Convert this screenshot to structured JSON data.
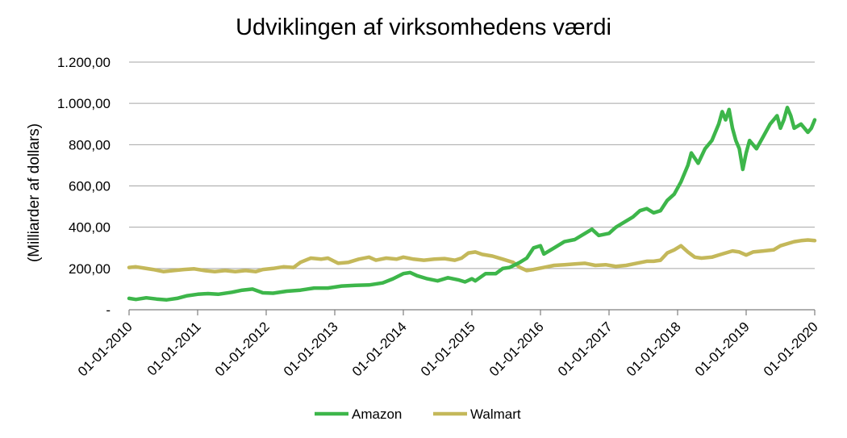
{
  "chart_data": {
    "type": "line",
    "title": "Udviklingen af virksomhedens værdi",
    "xlabel": "",
    "ylabel": "(Milliarder af dollars)",
    "ylim": [
      0,
      1200
    ],
    "y_ticks": [
      0,
      200,
      400,
      600,
      800,
      1000,
      1200
    ],
    "y_tick_labels": [
      "-",
      "200,00",
      "400,00",
      "600,00",
      "800,00",
      "1.000,00",
      "1.200,00"
    ],
    "x_tick_labels": [
      "01-01-2010",
      "01-01-2011",
      "01-01-2012",
      "01-01-2013",
      "01-01-2014",
      "01-01-2015",
      "01-01-2016",
      "01-01-2017",
      "01-01-2018",
      "01-01-2019",
      "01-01-2020"
    ],
    "xlim": [
      2010,
      2020
    ],
    "grid": true,
    "legend_position": "bottom",
    "series": [
      {
        "name": "Amazon",
        "color": "#3DB64A",
        "points": [
          [
            2010.0,
            55
          ],
          [
            2010.1,
            50
          ],
          [
            2010.25,
            58
          ],
          [
            2010.4,
            52
          ],
          [
            2010.55,
            48
          ],
          [
            2010.7,
            55
          ],
          [
            2010.85,
            68
          ],
          [
            2011.0,
            75
          ],
          [
            2011.15,
            78
          ],
          [
            2011.3,
            75
          ],
          [
            2011.5,
            85
          ],
          [
            2011.65,
            95
          ],
          [
            2011.8,
            100
          ],
          [
            2011.95,
            82
          ],
          [
            2012.1,
            80
          ],
          [
            2012.3,
            90
          ],
          [
            2012.5,
            95
          ],
          [
            2012.7,
            105
          ],
          [
            2012.9,
            105
          ],
          [
            2013.1,
            115
          ],
          [
            2013.3,
            118
          ],
          [
            2013.5,
            120
          ],
          [
            2013.7,
            130
          ],
          [
            2013.85,
            150
          ],
          [
            2014.0,
            175
          ],
          [
            2014.1,
            180
          ],
          [
            2014.2,
            165
          ],
          [
            2014.35,
            150
          ],
          [
            2014.5,
            140
          ],
          [
            2014.65,
            155
          ],
          [
            2014.8,
            145
          ],
          [
            2014.9,
            135
          ],
          [
            2015.0,
            150
          ],
          [
            2015.05,
            140
          ],
          [
            2015.2,
            175
          ],
          [
            2015.35,
            175
          ],
          [
            2015.45,
            200
          ],
          [
            2015.55,
            205
          ],
          [
            2015.7,
            230
          ],
          [
            2015.8,
            250
          ],
          [
            2015.9,
            300
          ],
          [
            2016.0,
            310
          ],
          [
            2016.05,
            270
          ],
          [
            2016.2,
            300
          ],
          [
            2016.35,
            330
          ],
          [
            2016.5,
            340
          ],
          [
            2016.65,
            370
          ],
          [
            2016.75,
            390
          ],
          [
            2016.85,
            360
          ],
          [
            2017.0,
            370
          ],
          [
            2017.1,
            400
          ],
          [
            2017.2,
            420
          ],
          [
            2017.35,
            450
          ],
          [
            2017.45,
            480
          ],
          [
            2017.55,
            490
          ],
          [
            2017.65,
            470
          ],
          [
            2017.75,
            480
          ],
          [
            2017.85,
            530
          ],
          [
            2017.95,
            560
          ],
          [
            2018.05,
            620
          ],
          [
            2018.15,
            700
          ],
          [
            2018.2,
            760
          ],
          [
            2018.3,
            710
          ],
          [
            2018.4,
            780
          ],
          [
            2018.5,
            820
          ],
          [
            2018.6,
            900
          ],
          [
            2018.65,
            960
          ],
          [
            2018.7,
            920
          ],
          [
            2018.75,
            970
          ],
          [
            2018.8,
            880
          ],
          [
            2018.85,
            820
          ],
          [
            2018.9,
            780
          ],
          [
            2018.95,
            680
          ],
          [
            2019.0,
            760
          ],
          [
            2019.05,
            820
          ],
          [
            2019.15,
            780
          ],
          [
            2019.25,
            840
          ],
          [
            2019.35,
            900
          ],
          [
            2019.45,
            940
          ],
          [
            2019.5,
            880
          ],
          [
            2019.55,
            920
          ],
          [
            2019.6,
            980
          ],
          [
            2019.65,
            940
          ],
          [
            2019.7,
            880
          ],
          [
            2019.8,
            900
          ],
          [
            2019.9,
            860
          ],
          [
            2019.95,
            880
          ],
          [
            2020.0,
            920
          ]
        ]
      },
      {
        "name": "Walmart",
        "color": "#C4B85A",
        "points": [
          [
            2010.0,
            205
          ],
          [
            2010.1,
            208
          ],
          [
            2010.2,
            203
          ],
          [
            2010.35,
            195
          ],
          [
            2010.5,
            185
          ],
          [
            2010.65,
            190
          ],
          [
            2010.8,
            195
          ],
          [
            2010.95,
            198
          ],
          [
            2011.1,
            190
          ],
          [
            2011.25,
            185
          ],
          [
            2011.4,
            190
          ],
          [
            2011.55,
            185
          ],
          [
            2011.7,
            190
          ],
          [
            2011.85,
            185
          ],
          [
            2011.95,
            195
          ],
          [
            2012.1,
            200
          ],
          [
            2012.25,
            208
          ],
          [
            2012.4,
            205
          ],
          [
            2012.5,
            230
          ],
          [
            2012.65,
            250
          ],
          [
            2012.8,
            245
          ],
          [
            2012.9,
            250
          ],
          [
            2013.05,
            225
          ],
          [
            2013.2,
            230
          ],
          [
            2013.35,
            245
          ],
          [
            2013.5,
            255
          ],
          [
            2013.6,
            240
          ],
          [
            2013.75,
            250
          ],
          [
            2013.9,
            245
          ],
          [
            2014.0,
            255
          ],
          [
            2014.15,
            245
          ],
          [
            2014.3,
            240
          ],
          [
            2014.45,
            245
          ],
          [
            2014.6,
            248
          ],
          [
            2014.75,
            240
          ],
          [
            2014.85,
            250
          ],
          [
            2014.95,
            275
          ],
          [
            2015.05,
            280
          ],
          [
            2015.15,
            268
          ],
          [
            2015.3,
            260
          ],
          [
            2015.45,
            245
          ],
          [
            2015.6,
            230
          ],
          [
            2015.7,
            205
          ],
          [
            2015.8,
            190
          ],
          [
            2015.9,
            195
          ],
          [
            2016.05,
            205
          ],
          [
            2016.2,
            215
          ],
          [
            2016.35,
            218
          ],
          [
            2016.5,
            222
          ],
          [
            2016.65,
            225
          ],
          [
            2016.8,
            215
          ],
          [
            2016.95,
            218
          ],
          [
            2017.1,
            210
          ],
          [
            2017.25,
            215
          ],
          [
            2017.4,
            225
          ],
          [
            2017.55,
            235
          ],
          [
            2017.65,
            235
          ],
          [
            2017.75,
            240
          ],
          [
            2017.85,
            275
          ],
          [
            2017.95,
            290
          ],
          [
            2018.05,
            310
          ],
          [
            2018.15,
            280
          ],
          [
            2018.25,
            255
          ],
          [
            2018.35,
            250
          ],
          [
            2018.5,
            255
          ],
          [
            2018.65,
            270
          ],
          [
            2018.8,
            285
          ],
          [
            2018.9,
            280
          ],
          [
            2019.0,
            265
          ],
          [
            2019.1,
            280
          ],
          [
            2019.25,
            285
          ],
          [
            2019.4,
            290
          ],
          [
            2019.5,
            310
          ],
          [
            2019.6,
            320
          ],
          [
            2019.7,
            330
          ],
          [
            2019.8,
            335
          ],
          [
            2019.9,
            338
          ],
          [
            2020.0,
            335
          ]
        ]
      }
    ]
  }
}
